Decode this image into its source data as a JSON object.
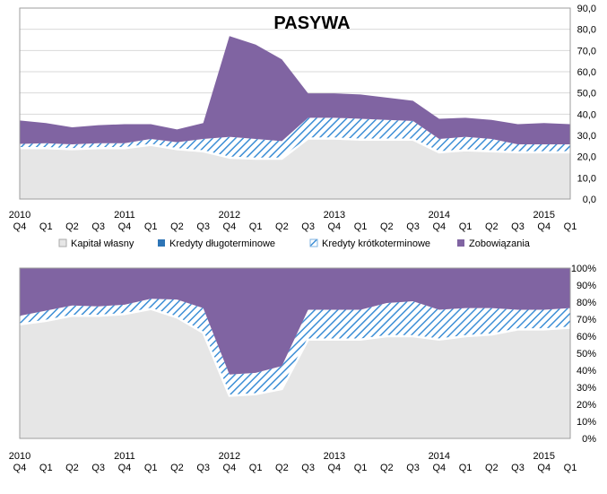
{
  "chart_data": [
    {
      "type": "area",
      "stacked": true,
      "title": "PASYWA",
      "ylim": [
        0,
        90
      ],
      "y_ticks": [
        "0,0",
        "10,0",
        "20,0",
        "30,0",
        "40,0",
        "50,0",
        "60,0",
        "70,0",
        "80,0",
        "90,0"
      ],
      "quarters": [
        "Q4",
        "Q1",
        "Q2",
        "Q3",
        "Q4",
        "Q1",
        "Q2",
        "Q3",
        "Q4",
        "Q1",
        "Q2",
        "Q3",
        "Q4",
        "Q1",
        "Q2",
        "Q3",
        "Q4",
        "Q1",
        "Q2",
        "Q3",
        "Q4",
        "Q1"
      ],
      "years": [
        "2010",
        "2011",
        "2012",
        "2013",
        "2014",
        "2015"
      ],
      "grid": true,
      "legend_position": "bottom",
      "series": [
        {
          "name": "Kapitał własny",
          "color": "#e6e6e6",
          "values": [
            24,
            24,
            23.5,
            24,
            24,
            25.5,
            23.5,
            22.5,
            19.5,
            19,
            19,
            28.5,
            28.5,
            28,
            28,
            28,
            22,
            23,
            22.5,
            22,
            22,
            22
          ]
        },
        {
          "name": "Kredyty długoterminowe",
          "color": "#2e75b6",
          "values": [
            0.3,
            0.3,
            0.3,
            0.3,
            0.3,
            0.3,
            0.3,
            0.3,
            0.3,
            0.3,
            0.3,
            0.3,
            0.3,
            0.3,
            0.3,
            0.3,
            0.3,
            0.3,
            0.3,
            0.3,
            0.3,
            0.3
          ]
        },
        {
          "name": "Kredyty krótkoterminowe",
          "color": "#5aa0dc",
          "values": [
            1.7,
            2,
            2,
            2,
            2,
            2.5,
            3,
            5.5,
            9.5,
            9,
            8,
            9.5,
            9.5,
            9.5,
            9,
            8.5,
            6,
            6,
            5.5,
            3.5,
            3.5,
            3.5
          ]
        },
        {
          "name": "Zobowiązania",
          "color": "#8064a2",
          "values": [
            11,
            9.5,
            8,
            8.5,
            9,
            7,
            6,
            7.5,
            47.5,
            44.5,
            38.5,
            11.5,
            11.5,
            11.5,
            10.5,
            9.5,
            9.5,
            9,
            9,
            9.5,
            10,
            9.5
          ]
        }
      ]
    },
    {
      "type": "area",
      "stacked": true,
      "percent": true,
      "ylim": [
        0,
        100
      ],
      "y_ticks": [
        "0%",
        "10%",
        "20%",
        "30%",
        "40%",
        "50%",
        "60%",
        "70%",
        "80%",
        "90%",
        "100%"
      ],
      "quarters": [
        "Q4",
        "Q1",
        "Q2",
        "Q3",
        "Q4",
        "Q1",
        "Q2",
        "Q3",
        "Q4",
        "Q1",
        "Q2",
        "Q3",
        "Q4",
        "Q1",
        "Q2",
        "Q3",
        "Q4",
        "Q1",
        "Q2",
        "Q3",
        "Q4",
        "Q1"
      ],
      "years": [
        "2010",
        "2011",
        "2012",
        "2013",
        "2014",
        "2015"
      ],
      "grid": true,
      "series": [
        {
          "name": "Kapitał własny",
          "color": "#e6e6e6",
          "values": [
            67,
            69,
            72,
            72,
            73,
            76,
            71,
            62,
            25,
            26,
            29,
            58,
            58,
            58,
            60,
            60,
            58,
            60,
            61,
            64,
            64,
            65
          ]
        },
        {
          "name": "Kredyty długoterminowe",
          "color": "#2e75b6",
          "values": [
            0.5,
            0.5,
            0.5,
            0.5,
            0.5,
            0.5,
            0.5,
            0.5,
            0.5,
            0.5,
            0.5,
            0.5,
            0.5,
            0.5,
            0.5,
            0.5,
            0.5,
            0.5,
            0.5,
            0.5,
            0.5,
            0.5
          ]
        },
        {
          "name": "Kredyty krótkoterminowe",
          "color": "#5aa0dc",
          "values": [
            4.5,
            5.5,
            5.5,
            5,
            5,
            5.5,
            10,
            14,
            12,
            12,
            13,
            17,
            17,
            17,
            19,
            20,
            17,
            16,
            15,
            11,
            11,
            11
          ]
        },
        {
          "name": "Zobowiązania",
          "color": "#8064a2",
          "values": [
            28,
            25,
            22,
            22.5,
            21.5,
            18,
            18.5,
            23.5,
            62.5,
            61.5,
            57.5,
            24.5,
            24.5,
            24.5,
            20.5,
            19.5,
            24.5,
            23.5,
            23.5,
            24.5,
            24.5,
            23.5
          ]
        }
      ]
    }
  ]
}
